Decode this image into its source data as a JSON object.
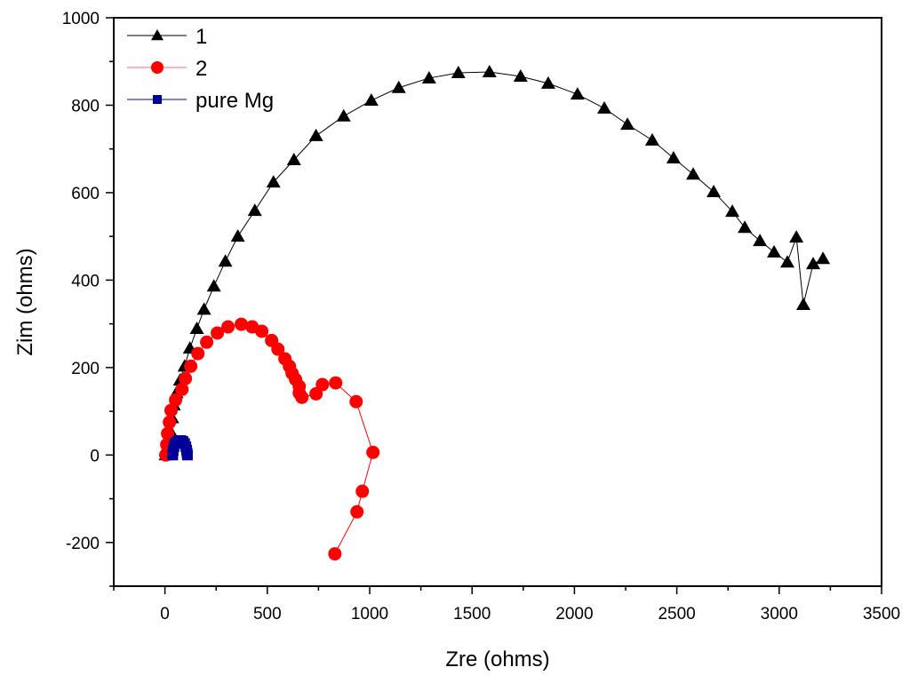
{
  "chart_data": {
    "type": "scatter",
    "title": "",
    "xlabel": "Zre (ohms)",
    "ylabel": "Zim (ohms)",
    "xlim": [
      -250,
      3500
    ],
    "ylim": [
      -300,
      1000
    ],
    "xticks": [
      0,
      500,
      1000,
      1500,
      2000,
      2500,
      3000,
      3500
    ],
    "yticks": [
      -200,
      0,
      200,
      400,
      600,
      800,
      1000
    ],
    "xtick_labels": [
      "0",
      "500",
      "1000",
      "1500",
      "2000",
      "2500",
      "3000",
      "3500"
    ],
    "ytick_labels": [
      "-200",
      "0",
      "200",
      "400",
      "600",
      "800",
      "1000"
    ],
    "grid": false,
    "legend_position": "top-left",
    "series": [
      {
        "name": "1",
        "color": "#000000",
        "marker": "triangle",
        "x": [
          4,
          17,
          26,
          35,
          43,
          56,
          74,
          96,
          122,
          156,
          191,
          239,
          295,
          356,
          439,
          530,
          630,
          738,
          873,
          1008,
          1142,
          1290,
          1433,
          1585,
          1737,
          1872,
          2015,
          2146,
          2259,
          2380,
          2484,
          2580,
          2680,
          2771,
          2832,
          2906,
          2975,
          3040,
          3084,
          3118,
          3166,
          3214
        ],
        "y": [
          0,
          24,
          55,
          85,
          114,
          142,
          171,
          203,
          244,
          289,
          333,
          386,
          443,
          500,
          559,
          624,
          675,
          730,
          775,
          811,
          840,
          862,
          874,
          876,
          866,
          850,
          825,
          793,
          756,
          720,
          679,
          642,
          602,
          557,
          520,
          490,
          464,
          441,
          498,
          344,
          437,
          449
        ]
      },
      {
        "name": "2",
        "color": "#ff0000",
        "marker": "circle",
        "x": [
          4,
          9,
          13,
          22,
          30,
          52,
          83,
          100,
          126,
          161,
          204,
          256,
          308,
          373,
          426,
          473,
          521,
          552,
          586,
          608,
          621,
          638,
          656,
          656,
          669,
          738,
          769,
          834,
          934,
          1016,
          964,
          938,
          830
        ],
        "y": [
          0,
          24,
          49,
          75,
          102,
          126,
          150,
          175,
          203,
          232,
          258,
          279,
          293,
          299,
          293,
          283,
          262,
          242,
          220,
          203,
          187,
          173,
          157,
          142,
          132,
          140,
          161,
          165,
          122,
          6,
          -83,
          -130,
          -226
        ]
      },
      {
        "name": "pure Mg",
        "color": "#000099",
        "marker": "square",
        "x": [
          38,
          40,
          44,
          50,
          58,
          68,
          78,
          88,
          96,
          102,
          106,
          108,
          110
        ],
        "y": [
          0,
          10,
          19,
          26,
          31,
          33,
          33,
          31,
          26,
          19,
          11,
          5,
          0
        ]
      }
    ]
  }
}
